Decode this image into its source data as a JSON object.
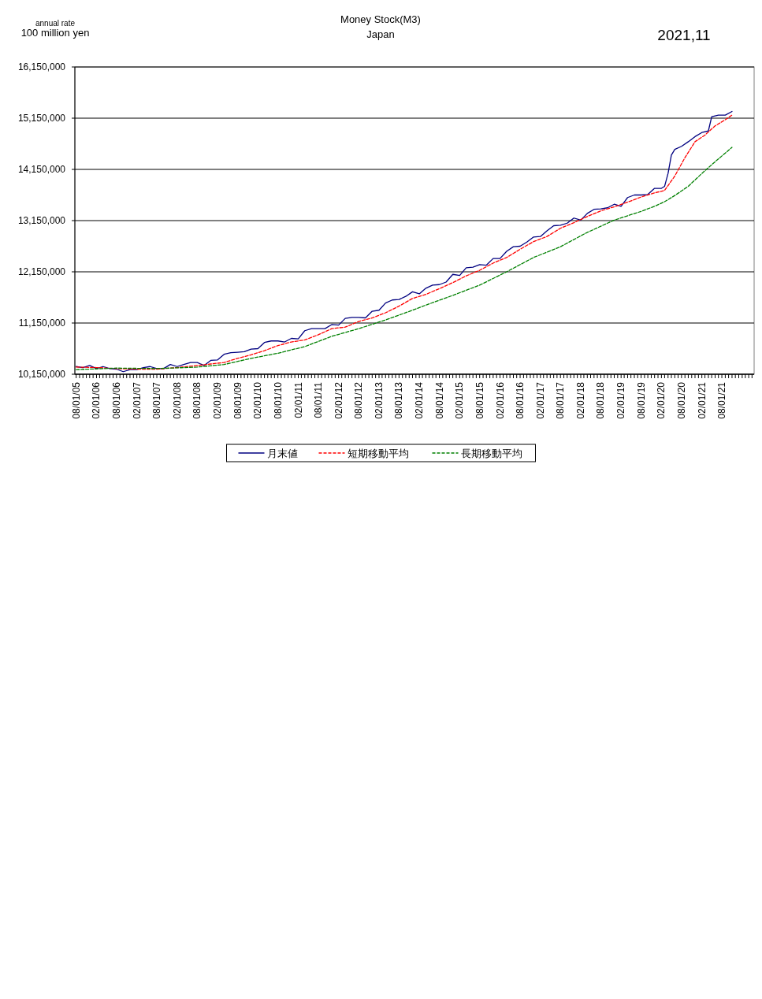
{
  "chart_data": {
    "type": "line",
    "title": "Money Stock(M3)",
    "subtitle": "Japan",
    "ylabel": "100 million yen",
    "annotations": [
      "annual rate",
      "2021,11"
    ],
    "xlim": [
      "2005-07-20",
      "2022-05-20"
    ],
    "ylim": [
      10150000,
      16150000
    ],
    "yticks": [
      {
        "value": 10150000,
        "label": "10,150,000"
      },
      {
        "value": 11150000,
        "label": "11,150,000"
      },
      {
        "value": 12150000,
        "label": "12,150,000"
      },
      {
        "value": 13150000,
        "label": "13,150,000"
      },
      {
        "value": 14150000,
        "label": "14,150,000"
      },
      {
        "value": 15150000,
        "label": "15,150,000"
      },
      {
        "value": 16150000,
        "label": "16,150,000"
      }
    ],
    "xticks": [
      {
        "value": "2005-08",
        "label": "08/01/05"
      },
      {
        "value": "2005-09",
        "label": null
      },
      {
        "value": "2005-10",
        "label": null
      },
      {
        "value": "2005-11",
        "label": null
      },
      {
        "value": "2005-12",
        "label": null
      },
      {
        "value": "2006-01",
        "label": null
      },
      {
        "value": "2006-02",
        "label": "02/01/06"
      },
      {
        "value": "2006-03",
        "label": null
      },
      {
        "value": "2006-04",
        "label": null
      },
      {
        "value": "2006-05",
        "label": null
      },
      {
        "value": "2006-06",
        "label": null
      },
      {
        "value": "2006-07",
        "label": null
      },
      {
        "value": "2006-08",
        "label": "08/01/06"
      },
      {
        "value": "2006-09",
        "label": null
      },
      {
        "value": "2006-10",
        "label": null
      },
      {
        "value": "2006-11",
        "label": null
      },
      {
        "value": "2006-12",
        "label": null
      },
      {
        "value": "2007-01",
        "label": null
      },
      {
        "value": "2007-02",
        "label": "02/01/07"
      },
      {
        "value": "2007-03",
        "label": null
      },
      {
        "value": "2007-04",
        "label": null
      },
      {
        "value": "2007-05",
        "label": null
      },
      {
        "value": "2007-06",
        "label": null
      },
      {
        "value": "2007-07",
        "label": null
      },
      {
        "value": "2007-08",
        "label": "08/01/07"
      },
      {
        "value": "2007-09",
        "label": null
      },
      {
        "value": "2007-10",
        "label": null
      },
      {
        "value": "2007-11",
        "label": null
      },
      {
        "value": "2007-12",
        "label": null
      },
      {
        "value": "2008-01",
        "label": null
      },
      {
        "value": "2008-02",
        "label": "02/01/08"
      },
      {
        "value": "2008-03",
        "label": null
      },
      {
        "value": "2008-04",
        "label": null
      },
      {
        "value": "2008-05",
        "label": null
      },
      {
        "value": "2008-06",
        "label": null
      },
      {
        "value": "2008-07",
        "label": null
      },
      {
        "value": "2008-08",
        "label": "08/01/08"
      },
      {
        "value": "2008-09",
        "label": null
      },
      {
        "value": "2008-10",
        "label": null
      },
      {
        "value": "2008-11",
        "label": null
      },
      {
        "value": "2008-12",
        "label": null
      },
      {
        "value": "2009-01",
        "label": null
      },
      {
        "value": "2009-02",
        "label": "02/01/09"
      },
      {
        "value": "2009-03",
        "label": null
      },
      {
        "value": "2009-04",
        "label": null
      },
      {
        "value": "2009-05",
        "label": null
      },
      {
        "value": "2009-06",
        "label": null
      },
      {
        "value": "2009-07",
        "label": null
      },
      {
        "value": "2009-08",
        "label": "08/01/09"
      },
      {
        "value": "2009-09",
        "label": null
      },
      {
        "value": "2009-10",
        "label": null
      },
      {
        "value": "2009-11",
        "label": null
      },
      {
        "value": "2009-12",
        "label": null
      },
      {
        "value": "2010-01",
        "label": null
      },
      {
        "value": "2010-02",
        "label": "02/01/10"
      },
      {
        "value": "2010-03",
        "label": null
      },
      {
        "value": "2010-04",
        "label": null
      },
      {
        "value": "2010-05",
        "label": null
      },
      {
        "value": "2010-06",
        "label": null
      },
      {
        "value": "2010-07",
        "label": null
      },
      {
        "value": "2010-08",
        "label": "08/01/10"
      },
      {
        "value": "2010-09",
        "label": null
      },
      {
        "value": "2010-10",
        "label": null
      },
      {
        "value": "2010-11",
        "label": null
      },
      {
        "value": "2010-12",
        "label": null
      },
      {
        "value": "2011-01",
        "label": null
      },
      {
        "value": "2011-02",
        "label": "02/01/11"
      },
      {
        "value": "2011-03",
        "label": null
      },
      {
        "value": "2011-04",
        "label": null
      },
      {
        "value": "2011-05",
        "label": null
      },
      {
        "value": "2011-06",
        "label": null
      },
      {
        "value": "2011-07",
        "label": null
      },
      {
        "value": "2011-08",
        "label": "08/01/11"
      },
      {
        "value": "2011-09",
        "label": null
      },
      {
        "value": "2011-10",
        "label": null
      },
      {
        "value": "2011-11",
        "label": null
      },
      {
        "value": "2011-12",
        "label": null
      },
      {
        "value": "2012-01",
        "label": null
      },
      {
        "value": "2012-02",
        "label": "02/01/12"
      },
      {
        "value": "2012-03",
        "label": null
      },
      {
        "value": "2012-04",
        "label": null
      },
      {
        "value": "2012-05",
        "label": null
      },
      {
        "value": "2012-06",
        "label": null
      },
      {
        "value": "2012-07",
        "label": null
      },
      {
        "value": "2012-08",
        "label": "08/01/12"
      },
      {
        "value": "2012-09",
        "label": null
      },
      {
        "value": "2012-10",
        "label": null
      },
      {
        "value": "2012-11",
        "label": null
      },
      {
        "value": "2012-12",
        "label": null
      },
      {
        "value": "2013-01",
        "label": null
      },
      {
        "value": "2013-02",
        "label": "02/01/13"
      },
      {
        "value": "2013-03",
        "label": null
      },
      {
        "value": "2013-04",
        "label": null
      },
      {
        "value": "2013-05",
        "label": null
      },
      {
        "value": "2013-06",
        "label": null
      },
      {
        "value": "2013-07",
        "label": null
      },
      {
        "value": "2013-08",
        "label": "08/01/13"
      },
      {
        "value": "2013-09",
        "label": null
      },
      {
        "value": "2013-10",
        "label": null
      },
      {
        "value": "2013-11",
        "label": null
      },
      {
        "value": "2013-12",
        "label": null
      },
      {
        "value": "2014-01",
        "label": null
      },
      {
        "value": "2014-02",
        "label": "02/01/14"
      },
      {
        "value": "2014-03",
        "label": null
      },
      {
        "value": "2014-04",
        "label": null
      },
      {
        "value": "2014-05",
        "label": null
      },
      {
        "value": "2014-06",
        "label": null
      },
      {
        "value": "2014-07",
        "label": null
      },
      {
        "value": "2014-08",
        "label": "08/01/14"
      },
      {
        "value": "2014-09",
        "label": null
      },
      {
        "value": "2014-10",
        "label": null
      },
      {
        "value": "2014-11",
        "label": null
      },
      {
        "value": "2014-12",
        "label": null
      },
      {
        "value": "2015-01",
        "label": null
      },
      {
        "value": "2015-02",
        "label": "02/01/15"
      },
      {
        "value": "2015-03",
        "label": null
      },
      {
        "value": "2015-04",
        "label": null
      },
      {
        "value": "2015-05",
        "label": null
      },
      {
        "value": "2015-06",
        "label": null
      },
      {
        "value": "2015-07",
        "label": null
      },
      {
        "value": "2015-08",
        "label": "08/01/15"
      },
      {
        "value": "2015-09",
        "label": null
      },
      {
        "value": "2015-10",
        "label": null
      },
      {
        "value": "2015-11",
        "label": null
      },
      {
        "value": "2015-12",
        "label": null
      },
      {
        "value": "2016-01",
        "label": null
      },
      {
        "value": "2016-02",
        "label": "02/01/16"
      },
      {
        "value": "2016-03",
        "label": null
      },
      {
        "value": "2016-04",
        "label": null
      },
      {
        "value": "2016-05",
        "label": null
      },
      {
        "value": "2016-06",
        "label": null
      },
      {
        "value": "2016-07",
        "label": null
      },
      {
        "value": "2016-08",
        "label": "08/01/16"
      },
      {
        "value": "2016-09",
        "label": null
      },
      {
        "value": "2016-10",
        "label": null
      },
      {
        "value": "2016-11",
        "label": null
      },
      {
        "value": "2016-12",
        "label": null
      },
      {
        "value": "2017-01",
        "label": null
      },
      {
        "value": "2017-02",
        "label": "02/01/17"
      },
      {
        "value": "2017-03",
        "label": null
      },
      {
        "value": "2017-04",
        "label": null
      },
      {
        "value": "2017-05",
        "label": null
      },
      {
        "value": "2017-06",
        "label": null
      },
      {
        "value": "2017-07",
        "label": null
      },
      {
        "value": "2017-08",
        "label": "08/01/17"
      },
      {
        "value": "2017-09",
        "label": null
      },
      {
        "value": "2017-10",
        "label": null
      },
      {
        "value": "2017-11",
        "label": null
      },
      {
        "value": "2017-12",
        "label": null
      },
      {
        "value": "2018-01",
        "label": null
      },
      {
        "value": "2018-02",
        "label": "02/01/18"
      },
      {
        "value": "2018-03",
        "label": null
      },
      {
        "value": "2018-04",
        "label": null
      },
      {
        "value": "2018-05",
        "label": null
      },
      {
        "value": "2018-06",
        "label": null
      },
      {
        "value": "2018-07",
        "label": null
      },
      {
        "value": "2018-08",
        "label": "08/01/18"
      },
      {
        "value": "2018-09",
        "label": null
      },
      {
        "value": "2018-10",
        "label": null
      },
      {
        "value": "2018-11",
        "label": null
      },
      {
        "value": "2018-12",
        "label": null
      },
      {
        "value": "2019-01",
        "label": null
      },
      {
        "value": "2019-02",
        "label": "02/01/19"
      },
      {
        "value": "2019-03",
        "label": null
      },
      {
        "value": "2019-04",
        "label": null
      },
      {
        "value": "2019-05",
        "label": null
      },
      {
        "value": "2019-06",
        "label": null
      },
      {
        "value": "2019-07",
        "label": null
      },
      {
        "value": "2019-08",
        "label": "08/01/19"
      },
      {
        "value": "2019-09",
        "label": null
      },
      {
        "value": "2019-10",
        "label": null
      },
      {
        "value": "2019-11",
        "label": null
      },
      {
        "value": "2019-12",
        "label": null
      },
      {
        "value": "2020-01",
        "label": null
      },
      {
        "value": "2020-02",
        "label": "02/01/20"
      },
      {
        "value": "2020-03",
        "label": null
      },
      {
        "value": "2020-04",
        "label": null
      },
      {
        "value": "2020-05",
        "label": null
      },
      {
        "value": "2020-06",
        "label": null
      },
      {
        "value": "2020-07",
        "label": null
      },
      {
        "value": "2020-08",
        "label": "08/01/20"
      },
      {
        "value": "2020-09",
        "label": null
      },
      {
        "value": "2020-10",
        "label": null
      },
      {
        "value": "2020-11",
        "label": null
      },
      {
        "value": "2020-12",
        "label": null
      },
      {
        "value": "2021-01",
        "label": null
      },
      {
        "value": "2021-02",
        "label": "02/01/21"
      },
      {
        "value": "2021-03",
        "label": null
      },
      {
        "value": "2021-04",
        "label": null
      },
      {
        "value": "2021-05",
        "label": null
      },
      {
        "value": "2021-06",
        "label": null
      },
      {
        "value": "2021-07",
        "label": null
      },
      {
        "value": "2021-08",
        "label": "08/01/21"
      },
      {
        "value": "2021-09",
        "label": null
      },
      {
        "value": "2021-10",
        "label": null
      },
      {
        "value": "2021-11",
        "label": null
      },
      {
        "value": "2021-12",
        "label": null
      },
      {
        "value": "2022-01",
        "label": null
      },
      {
        "value": "2022-02",
        "label": null
      },
      {
        "value": "2022-03",
        "label": null
      },
      {
        "value": "2022-04",
        "label": null
      },
      {
        "value": "2022-05",
        "label": null
      }
    ],
    "grid": "y",
    "legend": "bottom",
    "series": [
      {
        "name": "月末値",
        "color": "#000080",
        "line_style": "solid",
        "x": [
          "2005-08",
          "2005-10",
          "2005-12",
          "2006-02",
          "2006-04",
          "2006-06",
          "2006-08",
          "2006-10",
          "2006-12",
          "2007-02",
          "2007-04",
          "2007-06",
          "2007-08",
          "2007-10",
          "2007-12",
          "2008-02",
          "2008-04",
          "2008-06",
          "2008-08",
          "2008-10",
          "2008-12",
          "2009-02",
          "2009-04",
          "2009-06",
          "2009-08",
          "2009-10",
          "2009-12",
          "2010-02",
          "2010-04",
          "2010-06",
          "2010-08",
          "2010-10",
          "2010-12",
          "2011-02",
          "2011-04",
          "2011-06",
          "2011-08",
          "2011-10",
          "2011-12",
          "2012-02",
          "2012-04",
          "2012-06",
          "2012-08",
          "2012-10",
          "2012-12",
          "2013-02",
          "2013-04",
          "2013-06",
          "2013-08",
          "2013-10",
          "2013-12",
          "2014-02",
          "2014-04",
          "2014-06",
          "2014-08",
          "2014-10",
          "2014-12",
          "2015-02",
          "2015-04",
          "2015-06",
          "2015-08",
          "2015-10",
          "2015-12",
          "2016-02",
          "2016-04",
          "2016-06",
          "2016-08",
          "2016-10",
          "2016-12",
          "2017-02",
          "2017-04",
          "2017-06",
          "2017-08",
          "2017-10",
          "2017-12",
          "2018-02",
          "2018-04",
          "2018-06",
          "2018-08",
          "2018-10",
          "2018-12",
          "2019-02",
          "2019-04",
          "2019-06",
          "2019-08",
          "2019-10",
          "2019-12",
          "2020-02",
          "2020-03",
          "2020-04",
          "2020-05",
          "2020-06",
          "2020-08",
          "2020-10",
          "2020-12",
          "2021-02",
          "2021-04",
          "2021-05",
          "2021-07",
          "2021-09",
          "2021-11"
        ],
        "values": [
          10300000,
          10280000,
          10320000,
          10260000,
          10300000,
          10260000,
          10250000,
          10200000,
          10240000,
          10240000,
          10280000,
          10300000,
          10260000,
          10260000,
          10340000,
          10300000,
          10340000,
          10380000,
          10380000,
          10320000,
          10420000,
          10430000,
          10540000,
          10570000,
          10580000,
          10590000,
          10640000,
          10650000,
          10770000,
          10800000,
          10800000,
          10780000,
          10850000,
          10840000,
          11000000,
          11040000,
          11040000,
          11040000,
          11120000,
          11110000,
          11240000,
          11260000,
          11260000,
          11250000,
          11380000,
          11400000,
          11540000,
          11600000,
          11610000,
          11670000,
          11760000,
          11720000,
          11830000,
          11890000,
          11900000,
          11950000,
          12100000,
          12080000,
          12230000,
          12240000,
          12290000,
          12280000,
          12410000,
          12410000,
          12550000,
          12640000,
          12650000,
          12730000,
          12830000,
          12840000,
          12950000,
          13050000,
          13060000,
          13100000,
          13200000,
          13160000,
          13290000,
          13370000,
          13380000,
          13400000,
          13470000,
          13430000,
          13600000,
          13650000,
          13650000,
          13660000,
          13780000,
          13780000,
          13820000,
          14070000,
          14430000,
          14540000,
          14600000,
          14690000,
          14790000,
          14870000,
          14900000,
          15180000,
          15210000,
          15210000,
          15280000
        ]
      },
      {
        "name": "短期移動平均",
        "color": "#ff0000",
        "line_style": "dashed",
        "x": [
          "2005-08",
          "2006-02",
          "2006-08",
          "2007-02",
          "2007-08",
          "2008-02",
          "2008-08",
          "2008-12",
          "2009-04",
          "2009-08",
          "2009-12",
          "2010-04",
          "2010-08",
          "2010-12",
          "2011-04",
          "2011-08",
          "2011-12",
          "2012-04",
          "2012-08",
          "2012-12",
          "2013-04",
          "2013-08",
          "2013-12",
          "2014-04",
          "2014-08",
          "2014-12",
          "2015-04",
          "2015-08",
          "2015-12",
          "2016-04",
          "2016-08",
          "2016-12",
          "2017-04",
          "2017-08",
          "2017-12",
          "2018-04",
          "2018-08",
          "2018-12",
          "2019-04",
          "2019-08",
          "2019-12",
          "2020-03",
          "2020-06",
          "2020-09",
          "2020-12",
          "2021-03",
          "2021-06",
          "2021-09",
          "2021-11"
        ],
        "values": [
          10290000,
          10280000,
          10260000,
          10250000,
          10250000,
          10280000,
          10320000,
          10350000,
          10380000,
          10460000,
          10530000,
          10610000,
          10710000,
          10780000,
          10820000,
          10920000,
          11040000,
          11070000,
          11180000,
          11250000,
          11350000,
          11480000,
          11630000,
          11710000,
          11820000,
          11940000,
          12070000,
          12180000,
          12320000,
          12430000,
          12590000,
          12740000,
          12840000,
          13000000,
          13110000,
          13230000,
          13340000,
          13420000,
          13510000,
          13610000,
          13690000,
          13740000,
          14020000,
          14380000,
          14690000,
          14820000,
          15000000,
          15120000,
          15210000
        ]
      },
      {
        "name": "長期移動平均",
        "color": "#008000",
        "line_style": "dashed",
        "x": [
          "2005-08",
          "2006-08",
          "2007-08",
          "2008-08",
          "2009-04",
          "2009-12",
          "2010-08",
          "2011-04",
          "2011-12",
          "2012-08",
          "2013-04",
          "2013-12",
          "2014-04",
          "2014-12",
          "2015-08",
          "2016-04",
          "2016-12",
          "2017-08",
          "2018-04",
          "2018-12",
          "2019-08",
          "2019-12",
          "2020-03",
          "2020-06",
          "2020-10",
          "2021-02",
          "2021-06",
          "2021-11"
        ],
        "values": [
          10240000,
          10270000,
          10260000,
          10290000,
          10340000,
          10460000,
          10560000,
          10690000,
          10890000,
          11040000,
          11210000,
          11400000,
          11500000,
          11690000,
          11890000,
          12150000,
          12430000,
          12640000,
          12920000,
          13160000,
          13330000,
          13430000,
          13520000,
          13640000,
          13820000,
          14070000,
          14300000,
          14580000
        ]
      }
    ]
  }
}
